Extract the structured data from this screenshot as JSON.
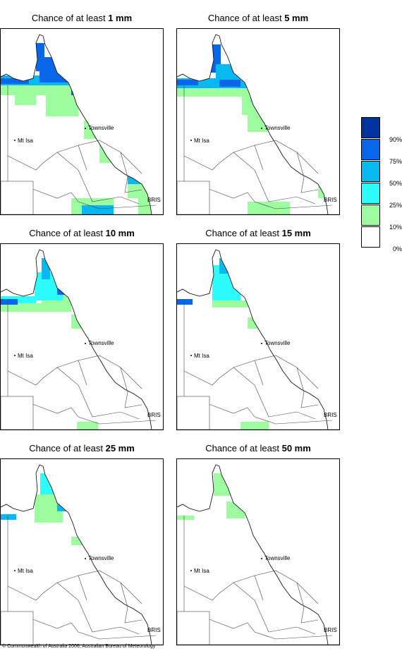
{
  "panels": [
    {
      "prefix": "Chance of at least ",
      "amount": "1 mm",
      "level": 5
    },
    {
      "prefix": "Chance of at least ",
      "amount": "5 mm",
      "level": 4
    },
    {
      "prefix": "Chance of at least ",
      "amount": "10 mm",
      "level": 3
    },
    {
      "prefix": "Chance of at least ",
      "amount": "15 mm",
      "level": 2
    },
    {
      "prefix": "Chance of at least ",
      "amount": "25 mm",
      "level": 1
    },
    {
      "prefix": "Chance of at least ",
      "amount": "50 mm",
      "level": 0
    }
  ],
  "places": {
    "townsville": "Townsville",
    "mt_isa": "Mt Isa",
    "bris": "BRIS"
  },
  "legend": {
    "items": [
      {
        "label": "90%",
        "color": "#00339e"
      },
      {
        "label": "75%",
        "color": "#0a66e8"
      },
      {
        "label": "50%",
        "color": "#08b8f0"
      },
      {
        "label": "25%",
        "color": "#2dfcfc"
      },
      {
        "label": "10%",
        "color": "#9dfc9d"
      },
      {
        "label": "0%",
        "color": "#ffffff"
      }
    ]
  },
  "credit": "© Commonwealth of Australia 2006, Australian Bureau of Meteorology"
}
